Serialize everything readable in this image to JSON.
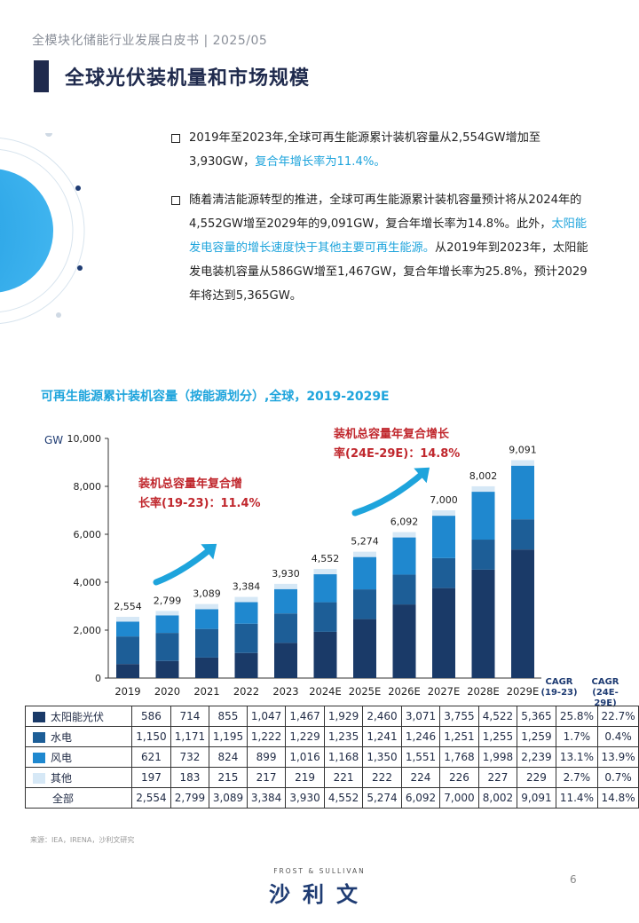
{
  "header": "全模块化储能行业发展白皮书 | 2025/05",
  "title": "全球光伏装机量和市场规模",
  "bullets": {
    "b1_pre": "2019年至2023年,全球可再生能源累计装机容量从2,554GW增加至3,930GW，",
    "b1_hl": "复合年增长率为11.4%。",
    "b2_pre": "随着清洁能源转型的推进，全球可再生能源累计装机容量预计将从2024年的4,552GW增至2029年的9,091GW，复合年增长率为14.8%。此外，",
    "b2_hl": "太阳能发电容量的增长速度快于其他主要可再生能源。",
    "b2_post": "从2019年到2023年，太阳能发电装机容量从586GW增至1,467GW，复合年增长率为25.8%，预计2029年将达到5,365GW。"
  },
  "chart_title": "可再生能源累计装机容量（按能源划分）,全球，2019-2029E",
  "annotations": {
    "left": [
      "装机总容量年复合增",
      "长率(19-23)：11.4%"
    ],
    "right": [
      "装机总容量年复合增长",
      "率(24E-29E)：14.8%"
    ]
  },
  "cagr_headers": [
    [
      "CAGR",
      "(19-23)"
    ],
    [
      "CAGR",
      "(24E-29E)"
    ]
  ],
  "colors": {
    "solar": "#1a3a68",
    "hydro": "#1d5e97",
    "wind": "#1f88cf",
    "other": "#d6e8f6",
    "accent": "#1ea4dc",
    "arrow": "#1ea4dc"
  },
  "chart_data": {
    "type": "bar",
    "stacked": true,
    "ylabel": "GW",
    "ylim": [
      0,
      10000
    ],
    "yticks": [
      "0",
      "2,000",
      "4,000",
      "6,000",
      "8,000",
      "10,000"
    ],
    "categories": [
      "2019",
      "2020",
      "2021",
      "2022",
      "2023",
      "2024E",
      "2025E",
      "2026E",
      "2027E",
      "2028E",
      "2029E"
    ],
    "series": [
      {
        "name": "太阳能光伏",
        "values": [
          586,
          714,
          855,
          1047,
          1467,
          1929,
          2460,
          3071,
          3755,
          4522,
          5365
        ],
        "cagr": [
          "25.8%",
          "22.7%"
        ]
      },
      {
        "name": "水电",
        "values": [
          1150,
          1171,
          1195,
          1222,
          1229,
          1235,
          1241,
          1246,
          1251,
          1255,
          1259
        ],
        "cagr": [
          "1.7%",
          "0.4%"
        ]
      },
      {
        "name": "风电",
        "values": [
          621,
          732,
          824,
          899,
          1016,
          1168,
          1350,
          1551,
          1768,
          1998,
          2239
        ],
        "cagr": [
          "13.1%",
          "13.9%"
        ]
      },
      {
        "name": "其他",
        "values": [
          197,
          183,
          215,
          217,
          219,
          221,
          222,
          224,
          226,
          227,
          229
        ],
        "cagr": [
          "2.7%",
          "0.7%"
        ]
      }
    ],
    "totals": {
      "name": "全部",
      "values": [
        2554,
        2799,
        3089,
        3384,
        3930,
        4552,
        5274,
        6092,
        7000,
        8002,
        9091
      ],
      "labels": [
        "2,554",
        "2,799",
        "3,089",
        "3,384",
        "3,930",
        "4,552",
        "5,274",
        "6,092",
        "7,000",
        "8,002",
        "9,091"
      ],
      "cagr": [
        "11.4%",
        "14.8%"
      ]
    },
    "table_values": [
      [
        "586",
        "714",
        "855",
        "1,047",
        "1,467",
        "1,929",
        "2,460",
        "3,071",
        "3,755",
        "4,522",
        "5,365"
      ],
      [
        "1,150",
        "1,171",
        "1,195",
        "1,222",
        "1,229",
        "1,235",
        "1,241",
        "1,246",
        "1,251",
        "1,255",
        "1,259"
      ],
      [
        "621",
        "732",
        "824",
        "899",
        "1,016",
        "1,168",
        "1,350",
        "1,551",
        "1,768",
        "1,998",
        "2,239"
      ],
      [
        "197",
        "183",
        "215",
        "217",
        "219",
        "221",
        "222",
        "224",
        "226",
        "227",
        "229"
      ]
    ]
  },
  "source": "来源：IEA，IRENA，沙利文研究",
  "logo_en": "FROST & SULLIVAN",
  "logo_cn": "沙利文",
  "page_number": "6"
}
